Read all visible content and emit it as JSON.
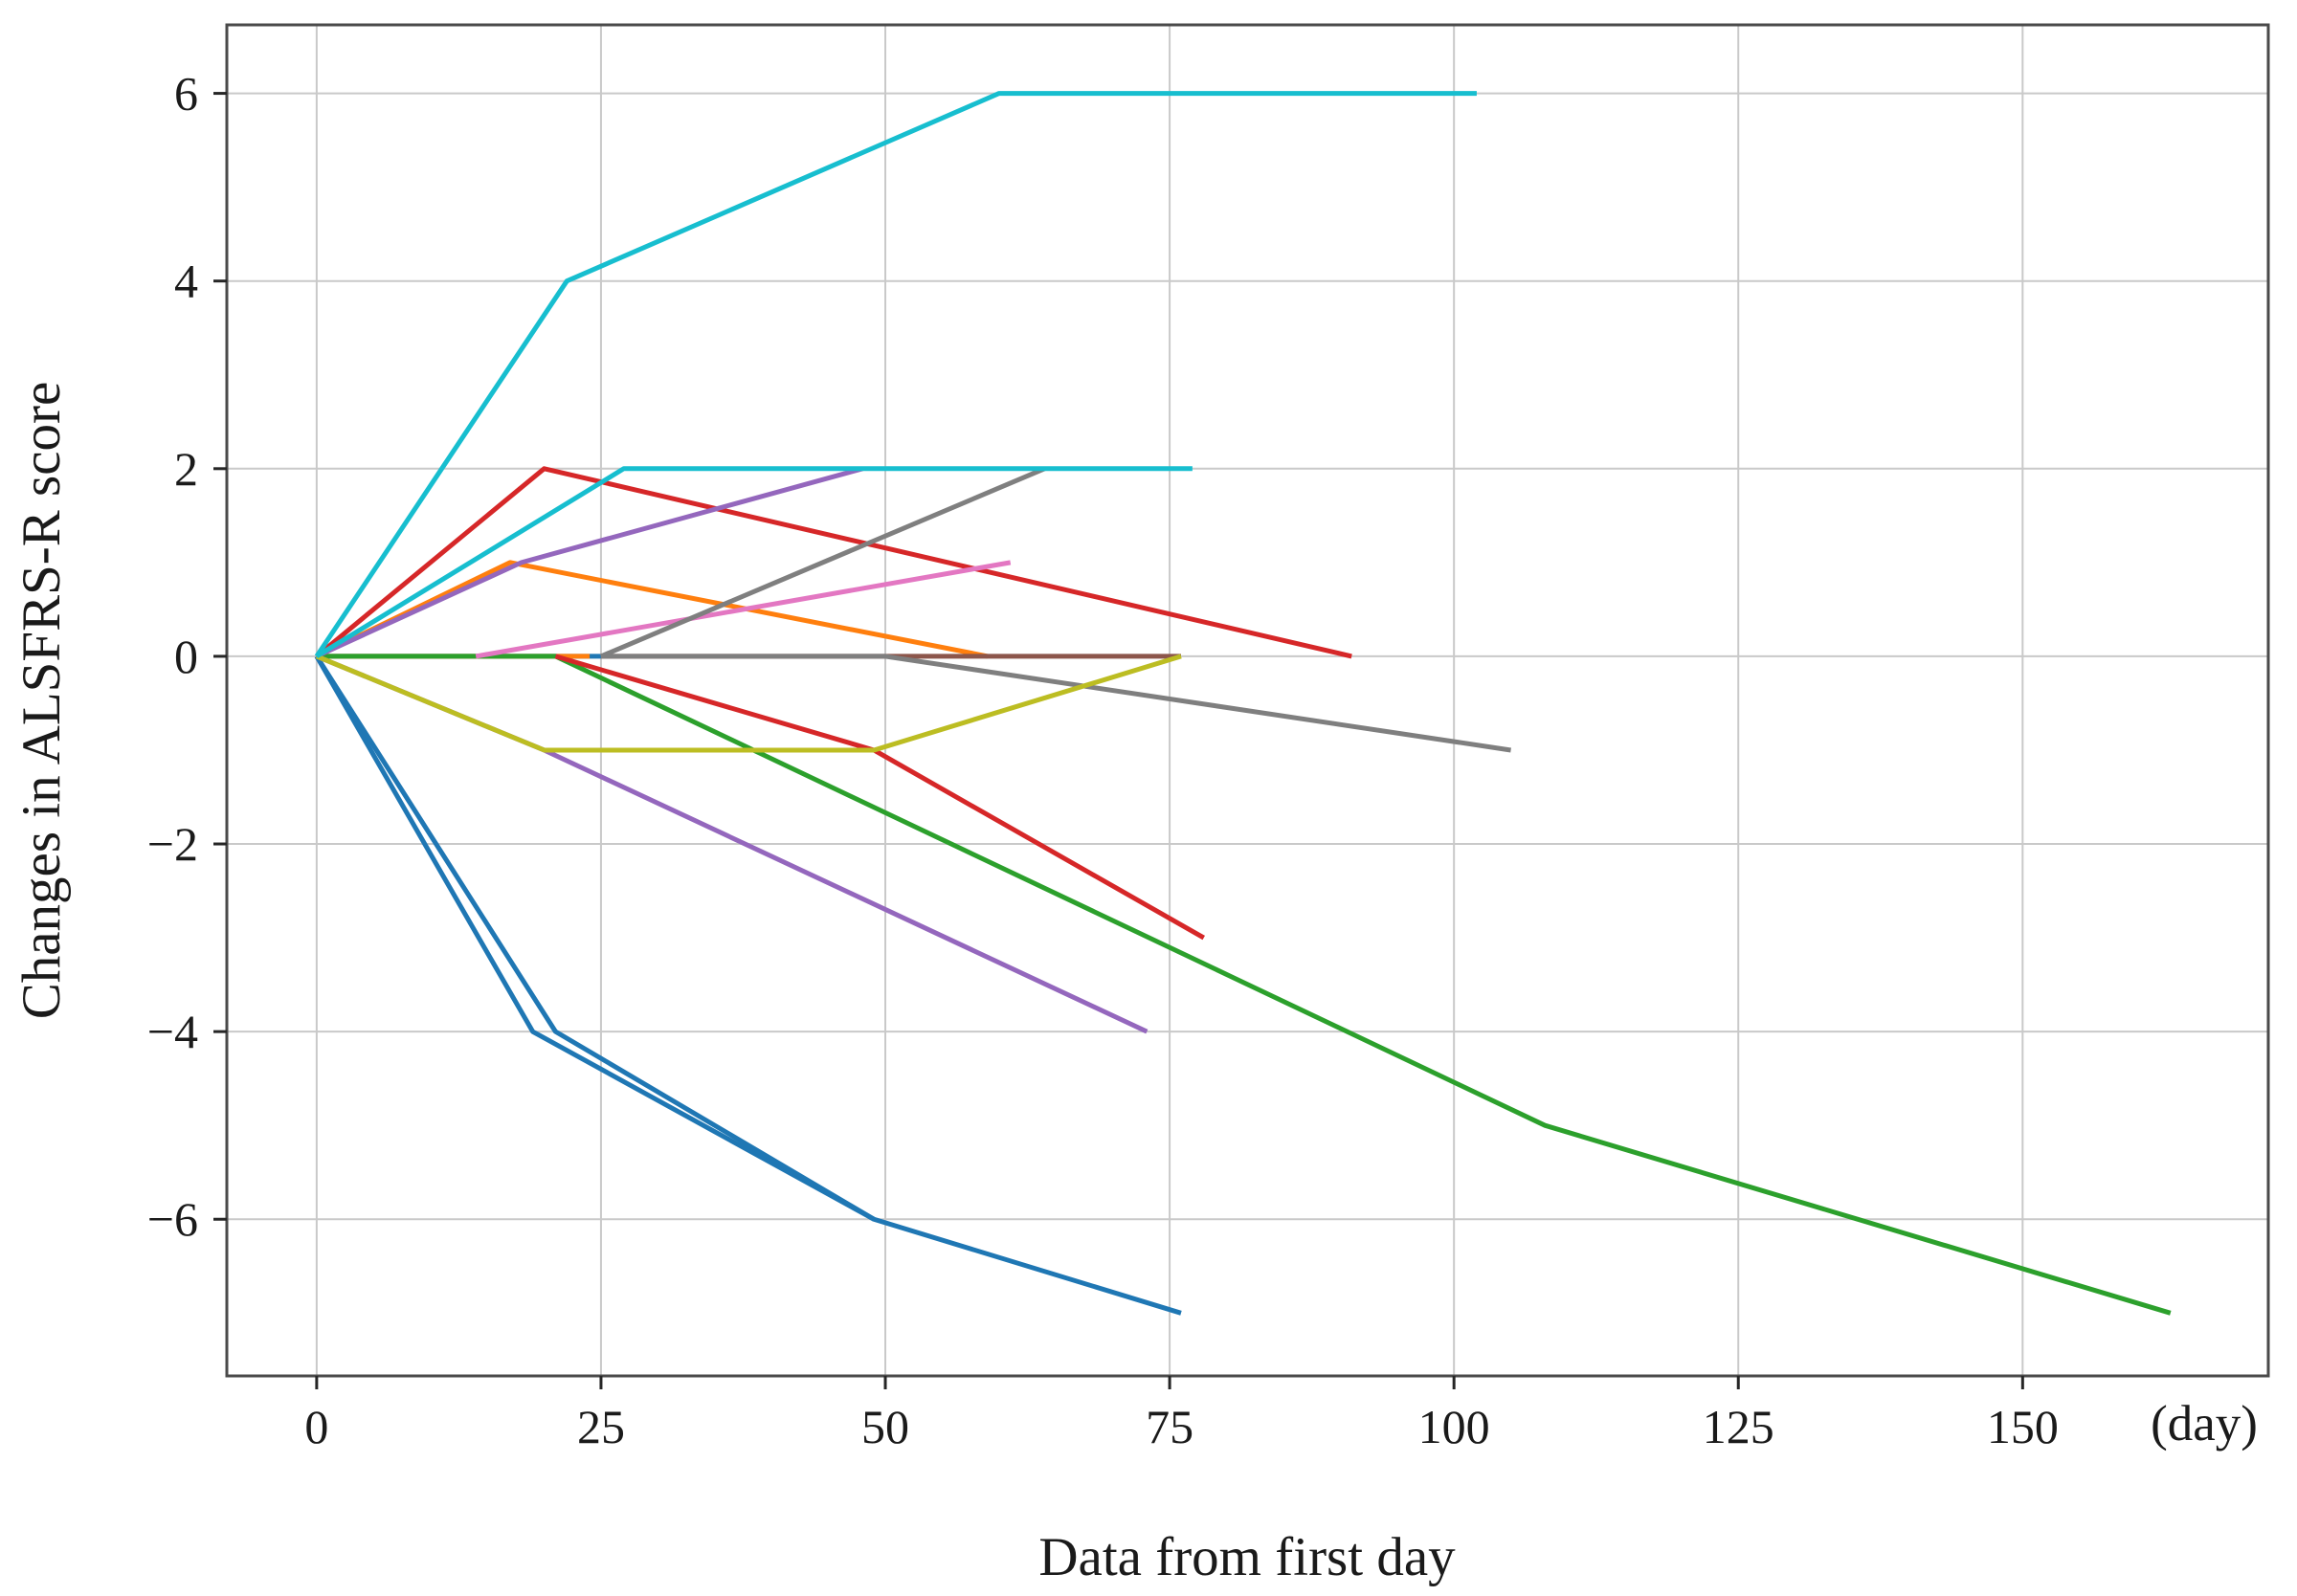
{
  "figure": {
    "ylabel": "Changes in ALSFRS-R score",
    "xlabel": "Data from first day",
    "x_unit_label": "(day)"
  },
  "chart_data": {
    "type": "line",
    "title": "",
    "xlabel": "Data from first day",
    "ylabel": "Changes in ALSFRS-R score",
    "x_unit": "(day)",
    "xlim": [
      -7.9,
      171.6
    ],
    "ylim": [
      -7.67,
      6.73
    ],
    "grid": true,
    "legend_position": "none",
    "x_ticks": [
      0,
      25,
      50,
      75,
      100,
      125,
      150
    ],
    "y_ticks": [
      6,
      4,
      2,
      0,
      -2,
      -4,
      -6
    ],
    "grid_color": "#c9c9c9",
    "spine_color": "#4a4a4a",
    "tick_color": "#262626",
    "line_width": 5,
    "series": [
      {
        "name": "blue-a",
        "color": "#1f77b4",
        "points": [
          [
            0,
            0
          ],
          [
            19,
            -4
          ],
          [
            49,
            -6
          ]
        ]
      },
      {
        "name": "blue-b",
        "color": "#1f77b4",
        "points": [
          [
            0,
            0
          ],
          [
            21,
            -4
          ],
          [
            49,
            -6
          ],
          [
            76,
            -7
          ]
        ]
      },
      {
        "name": "blue-c",
        "color": "#1f77b4",
        "points": [
          [
            0,
            0
          ],
          [
            25,
            0
          ]
        ]
      },
      {
        "name": "orange-a",
        "color": "#ff7f0e",
        "points": [
          [
            0,
            0
          ],
          [
            17,
            1
          ],
          [
            59,
            0
          ]
        ]
      },
      {
        "name": "orange-b",
        "color": "#ff7f0e",
        "points": [
          [
            0,
            0
          ],
          [
            24,
            0
          ]
        ]
      },
      {
        "name": "green-a",
        "color": "#2ca02c",
        "points": [
          [
            0,
            0
          ],
          [
            21,
            0
          ],
          [
            108,
            -5
          ],
          [
            163,
            -7
          ]
        ]
      },
      {
        "name": "red-a",
        "color": "#d62728",
        "points": [
          [
            0,
            0
          ],
          [
            20,
            2
          ],
          [
            91,
            0
          ]
        ]
      },
      {
        "name": "red-b",
        "color": "#d62728",
        "points": [
          [
            21,
            0
          ],
          [
            49,
            -1
          ],
          [
            78,
            -3
          ]
        ]
      },
      {
        "name": "purple-a",
        "color": "#9467bd",
        "points": [
          [
            0,
            0
          ],
          [
            18,
            1
          ],
          [
            48,
            2
          ]
        ]
      },
      {
        "name": "purple-b",
        "color": "#9467bd",
        "points": [
          [
            0,
            0
          ],
          [
            20,
            -1
          ],
          [
            73,
            -4
          ]
        ]
      },
      {
        "name": "brown-a",
        "color": "#8c564b",
        "points": [
          [
            25,
            0
          ],
          [
            76,
            0
          ]
        ]
      },
      {
        "name": "pink-a",
        "color": "#e377c2",
        "points": [
          [
            14,
            0
          ],
          [
            61,
            1
          ]
        ]
      },
      {
        "name": "gray-a",
        "color": "#7f7f7f",
        "points": [
          [
            25,
            0
          ],
          [
            64,
            2
          ]
        ]
      },
      {
        "name": "gray-b",
        "color": "#7f7f7f",
        "points": [
          [
            25,
            0
          ],
          [
            50,
            0
          ],
          [
            105,
            -1
          ]
        ]
      },
      {
        "name": "olive-a",
        "color": "#bcbd22",
        "points": [
          [
            0,
            0
          ],
          [
            20,
            -1
          ],
          [
            49,
            -1
          ],
          [
            76,
            0
          ]
        ]
      },
      {
        "name": "cyan-a",
        "color": "#17becf",
        "points": [
          [
            0,
            0
          ],
          [
            22,
            4
          ],
          [
            60,
            6
          ],
          [
            102,
            6
          ]
        ]
      },
      {
        "name": "cyan-b",
        "color": "#17becf",
        "points": [
          [
            0,
            0
          ],
          [
            27,
            2
          ],
          [
            77,
            2
          ]
        ]
      }
    ]
  }
}
